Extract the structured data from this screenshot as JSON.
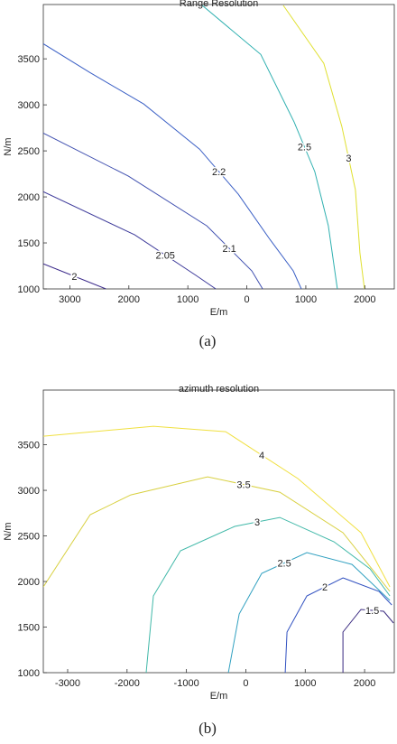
{
  "chart_data": [
    {
      "type": "contour",
      "title": "Range Resolution",
      "xlabel": "E/m",
      "ylabel": "N/m",
      "caption": "(a)",
      "xlim": [
        -3450,
        2500
      ],
      "ylim": [
        1000,
        4090
      ],
      "xticks": [
        {
          "value": -3000,
          "label": "3000"
        },
        {
          "value": -2000,
          "label": "2000"
        },
        {
          "value": -1000,
          "label": "1000"
        },
        0,
        {
          "value": 1000,
          "label": "1000"
        },
        {
          "value": 2000,
          "label": "2000"
        }
      ],
      "yticks": [
        1000,
        1500,
        2000,
        2500,
        3000,
        3500
      ],
      "series": [
        {
          "name": "2",
          "color": "#3b2a8a",
          "x": [
            -3458,
            -2389
          ],
          "y": [
            1275,
            1000
          ]
        },
        {
          "name": "2.05",
          "color": "#3d3a9a",
          "x": [
            -3458,
            -1901,
            -862,
            -526
          ],
          "y": [
            2058,
            1588,
            1147,
            1000
          ]
        },
        {
          "name": "2.1",
          "color": "#4050b0",
          "x": [
            -3458,
            -2007,
            -679,
            85,
            268
          ],
          "y": [
            2695,
            2225,
            1686,
            1196,
            1000
          ]
        },
        {
          "name": "2.2",
          "color": "#3a5fc5",
          "x": [
            -3458,
            -2664,
            -1748,
            -801,
            -144,
            390,
            787,
            924
          ],
          "y": [
            3666,
            3352,
            3009,
            2519,
            2029,
            1539,
            1196,
            1000
          ]
        },
        {
          "name": "2.5",
          "color": "#2fb0b0",
          "x": [
            -755,
            237,
            802,
            1153,
            1382,
            1535
          ],
          "y": [
            4080,
            3548,
            2813,
            2274,
            1686,
            1000
          ]
        },
        {
          "name": "3",
          "color": "#e0e030",
          "x": [
            619,
            1306,
            1612,
            1841,
            1917,
            1993
          ],
          "y": [
            4080,
            3450,
            2764,
            2078,
            1392,
            1000
          ]
        }
      ]
    },
    {
      "type": "contour",
      "title": "azimuth resolution",
      "xlabel": "E/m",
      "ylabel": "N/m",
      "caption": "(b)",
      "xlim": [
        -3410,
        2500
      ],
      "ylim": [
        1000,
        4100
      ],
      "xticks": [
        -3000,
        -2000,
        -1000,
        0,
        1000,
        2000
      ],
      "yticks": [
        1000,
        1500,
        2000,
        2500,
        3000,
        3500
      ],
      "series": [
        {
          "name": "4",
          "color": "#f0e040",
          "x": [
            -3410,
            -1556,
            -340,
            876,
            1940,
            2426
          ],
          "y": [
            3594,
            3703,
            3643,
            3129,
            2535,
            1941
          ]
        },
        {
          "name": "3.5",
          "color": "#d8d040",
          "x": [
            -3410,
            -2620,
            -1936,
            -644,
            572,
            1636,
            2426
          ],
          "y": [
            1941,
            2733,
            2950,
            3148,
            2980,
            2535,
            1891
          ]
        },
        {
          "name": "3",
          "color": "#40b8a8",
          "x": [
            -1678,
            -1556,
            -1100,
            -188,
            572,
            1484,
            2092,
            2426
          ],
          "y": [
            1000,
            1842,
            2337,
            2604,
            2703,
            2436,
            2139,
            1842
          ]
        },
        {
          "name": "2.5",
          "color": "#30a0c0",
          "x": [
            -294,
            -112,
            268,
            1028,
            1788,
            2426
          ],
          "y": [
            1000,
            1644,
            2089,
            2317,
            2188,
            1792
          ]
        },
        {
          "name": "2",
          "color": "#3050c0",
          "x": [
            663,
            694,
            1028,
            1636,
            2244,
            2457
          ],
          "y": [
            1000,
            1446,
            1842,
            2040,
            1891,
            1743
          ]
        },
        {
          "name": "1.5",
          "color": "#3a2a80",
          "x": [
            1636,
            1636,
            1940,
            2320,
            2487
          ],
          "y": [
            1000,
            1446,
            1693,
            1673,
            1545
          ]
        }
      ]
    }
  ]
}
